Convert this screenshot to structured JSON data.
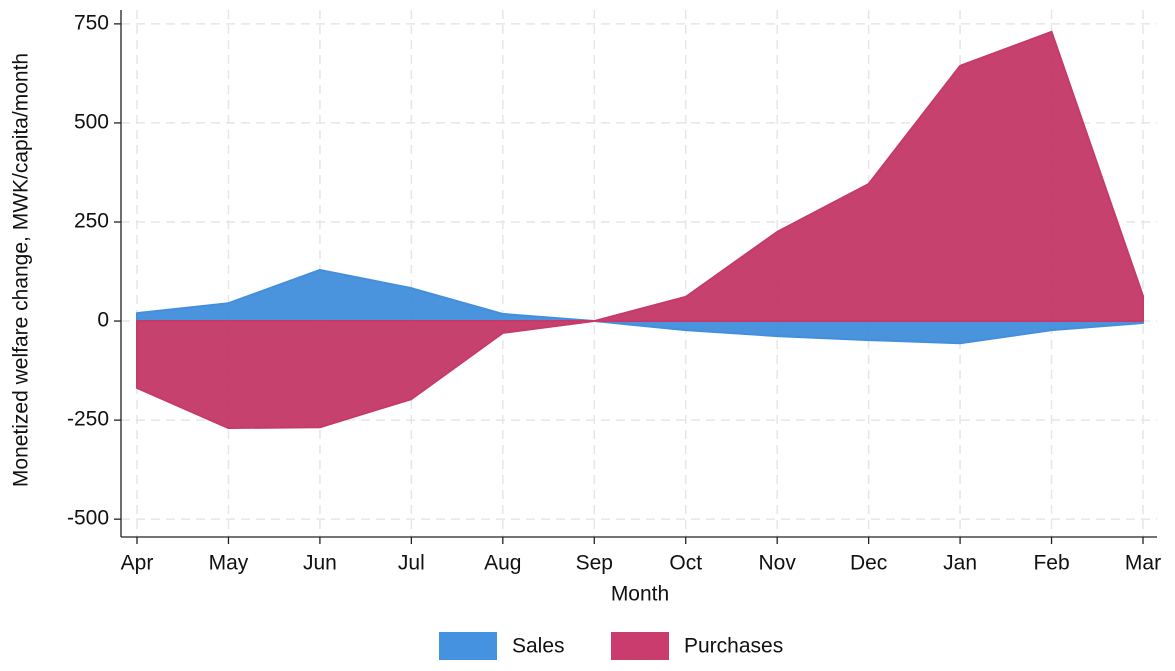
{
  "chart_data": {
    "type": "area",
    "x_label": "Month",
    "y_label": "Monetized welfare change, MWK/capita/month",
    "categories": [
      "Apr",
      "May",
      "Jun",
      "Jul",
      "Aug",
      "Sep",
      "Oct",
      "Nov",
      "Dec",
      "Jan",
      "Feb",
      "Mar"
    ],
    "series": [
      {
        "name": "Sales",
        "color": "#4b9ff5",
        "values": [
          20,
          45,
          129,
          83,
          18,
          0,
          -23,
          -38,
          -48,
          -56,
          -23,
          -5
        ]
      },
      {
        "name": "Purchases",
        "color": "#db4177",
        "values": [
          -169,
          -270,
          -268,
          -197,
          -30,
          0,
          61,
          225,
          346,
          644,
          730,
          63
        ]
      }
    ],
    "ylim": [
      -545,
      785
    ],
    "yticks": [
      -500,
      -250,
      0,
      250,
      500,
      750
    ],
    "grid": true,
    "legend": "bottom"
  }
}
